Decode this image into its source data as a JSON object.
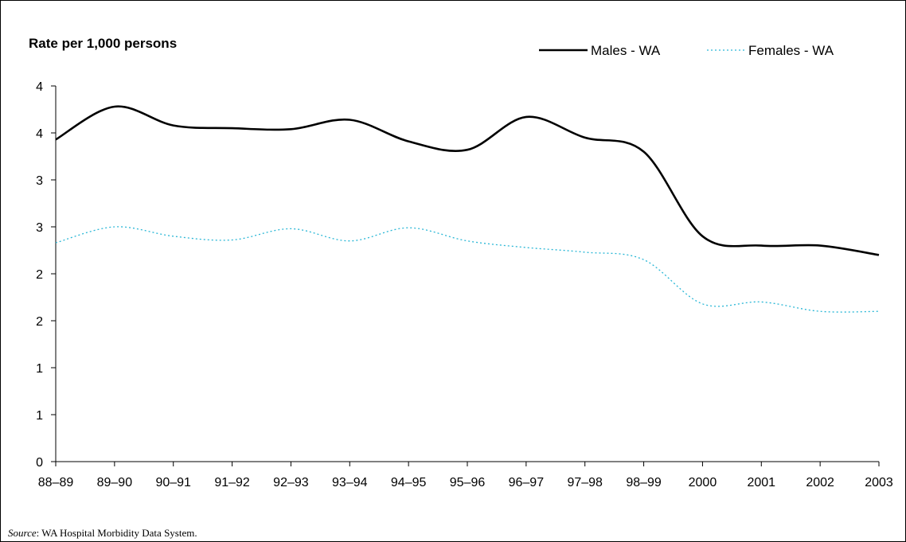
{
  "chart_data": {
    "type": "line",
    "ylabel": "Rate per 1,000 persons",
    "xlabel": "",
    "ylim": [
      0,
      4
    ],
    "y_ticks": [
      "0",
      "1",
      "1",
      "2",
      "2",
      "3",
      "3",
      "4",
      "4"
    ],
    "y_tick_values": [
      0,
      0.5,
      1,
      1.5,
      2,
      2.5,
      3,
      3.5,
      4
    ],
    "categories": [
      "88–89",
      "89–90",
      "90–91",
      "91–92",
      "92–93",
      "93–94",
      "94–95",
      "95–96",
      "96–97",
      "97–98",
      "98–99",
      "2000",
      "2001",
      "2002",
      "2003"
    ],
    "series": [
      {
        "name": "Males - WA",
        "color": "#000000",
        "style": "solid",
        "values": [
          3.43,
          3.78,
          3.58,
          3.55,
          3.54,
          3.64,
          3.41,
          3.32,
          3.67,
          3.45,
          3.3,
          2.4,
          2.3,
          2.3,
          2.2
        ]
      },
      {
        "name": "Females - WA",
        "color": "#2ab7d6",
        "style": "dotted",
        "values": [
          2.33,
          2.5,
          2.4,
          2.36,
          2.48,
          2.35,
          2.49,
          2.35,
          2.28,
          2.23,
          2.15,
          1.68,
          1.7,
          1.6,
          1.6
        ]
      }
    ],
    "legend_position": "top-right",
    "grid": false,
    "smoothed": true
  },
  "source": {
    "label": "Source",
    "text": ":  WA Hospital Morbidity Data System."
  }
}
